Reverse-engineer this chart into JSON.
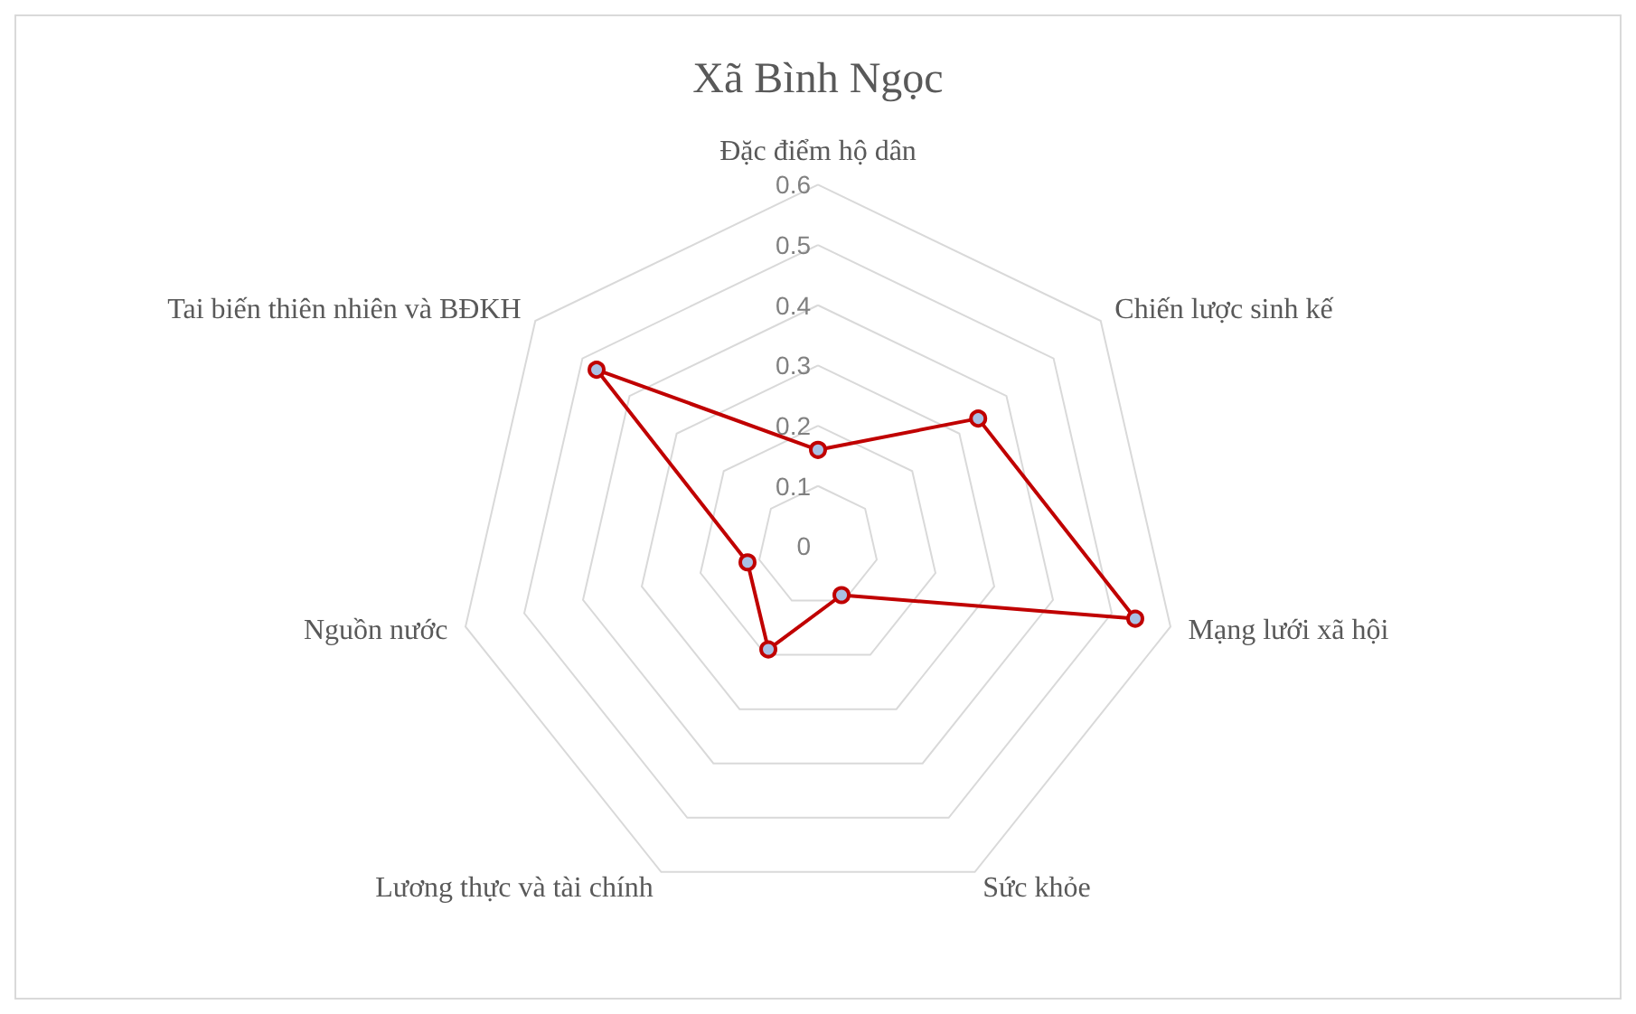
{
  "chart_data": {
    "type": "radar",
    "title": "Xã Bình Ngọc",
    "categories": [
      "Đặc điểm hộ dân",
      "Chiến lược sinh kế",
      "Mạng lưới xã hội",
      "Sức khỏe",
      "Lương thực và tài chính",
      "Nguồn nước",
      "Tai biến thiên nhiên và BĐKH"
    ],
    "series": [
      {
        "color": "#c00000",
        "values": [
          0.16,
          0.34,
          0.54,
          0.09,
          0.19,
          0.12,
          0.47
        ]
      }
    ],
    "ylim": [
      0,
      0.6
    ],
    "yticks": [
      0,
      0.1,
      0.2,
      0.3,
      0.4,
      0.5,
      0.6
    ],
    "grid": true,
    "marker": "circle",
    "line_style": "solid"
  }
}
